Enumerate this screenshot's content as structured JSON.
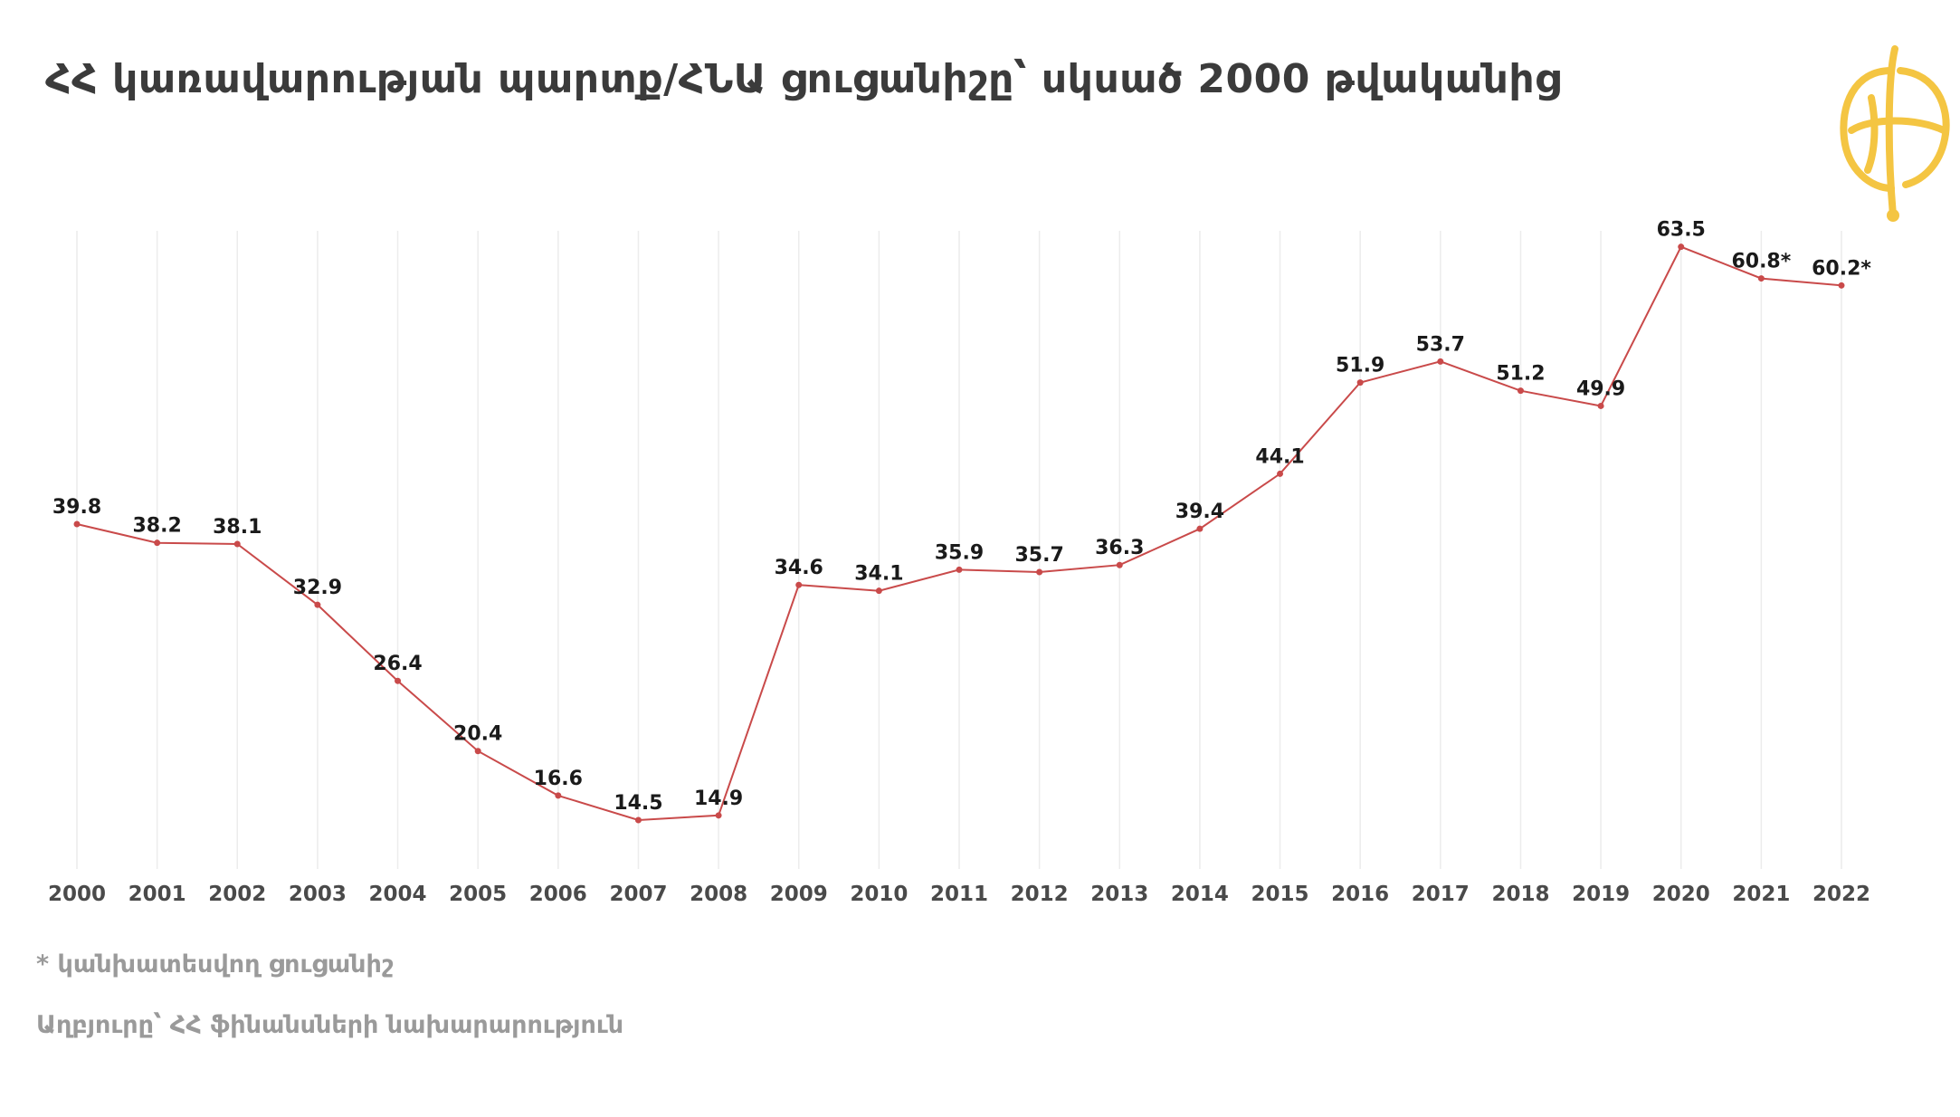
{
  "title": "ՀՀ կառավարության պարտք/ՀՆԱ ցուցանիշը՝ սկսած  2000 թվականից",
  "footnote": "* կանխատեսվող ցուցանիշ",
  "source": "Աղբյուրը՝ ՀՀ ֆինանսների նախարարություն",
  "logo_icon": "publisher-logo-icon",
  "colors": {
    "line": "#c94a4a",
    "logo": "#f4c542",
    "grid": "#ececec"
  },
  "chart_data": {
    "type": "line",
    "x": [
      "2000",
      "2001",
      "2002",
      "2003",
      "2004",
      "2005",
      "2006",
      "2007",
      "2008",
      "2009",
      "2010",
      "2011",
      "2012",
      "2013",
      "2014",
      "2015",
      "2016",
      "2017",
      "2018",
      "2019",
      "2020",
      "2021",
      "2022"
    ],
    "values": [
      39.8,
      38.2,
      38.1,
      32.9,
      26.4,
      20.4,
      16.6,
      14.5,
      14.9,
      34.6,
      34.1,
      35.9,
      35.7,
      36.3,
      39.4,
      44.1,
      51.9,
      53.7,
      51.2,
      49.9,
      63.5,
      60.8,
      60.2
    ],
    "labels": [
      "39.8",
      "38.2",
      "38.1",
      "32.9",
      "26.4",
      "20.4",
      "16.6",
      "14.5",
      "14.9",
      "34.6",
      "34.1",
      "35.9",
      "35.7",
      "36.3",
      "39.4",
      "44.1",
      "51.9",
      "53.7",
      "51.2",
      "49.9",
      "63.5",
      "60.8*",
      "60.2*"
    ],
    "grid": "vertical",
    "legend": "none"
  }
}
